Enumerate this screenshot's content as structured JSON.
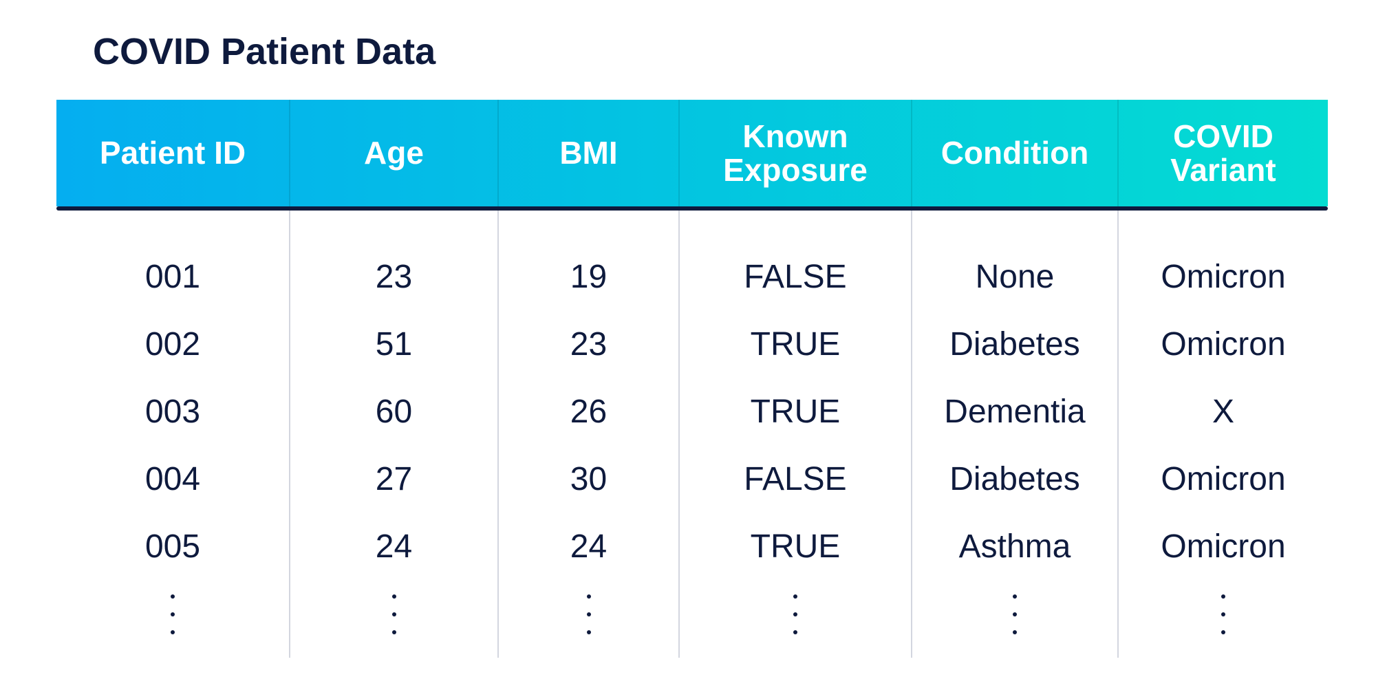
{
  "title": "COVID Patient Data",
  "chart_data": {
    "type": "table",
    "title": "COVID Patient Data",
    "columns": [
      "Patient ID",
      "Age",
      "BMI",
      "Known\nExposure",
      "Condition",
      "COVID\nVariant"
    ],
    "rows": [
      [
        "001",
        "23",
        "19",
        "FALSE",
        "None",
        "Omicron"
      ],
      [
        "002",
        "51",
        "23",
        "TRUE",
        "Diabetes",
        "Omicron"
      ],
      [
        "003",
        "60",
        "26",
        "TRUE",
        "Dementia",
        "X"
      ],
      [
        "004",
        "27",
        "30",
        "FALSE",
        "Diabetes",
        "Omicron"
      ],
      [
        "005",
        "24",
        "24",
        "TRUE",
        "Asthma",
        "Omicron"
      ]
    ],
    "truncated": true
  },
  "colors": {
    "header_gradient_start": "#05aef0",
    "header_gradient_end": "#04dcd2",
    "text": "#0e1a3d",
    "header_text": "#ffffff",
    "divider": "#d3d6df"
  }
}
